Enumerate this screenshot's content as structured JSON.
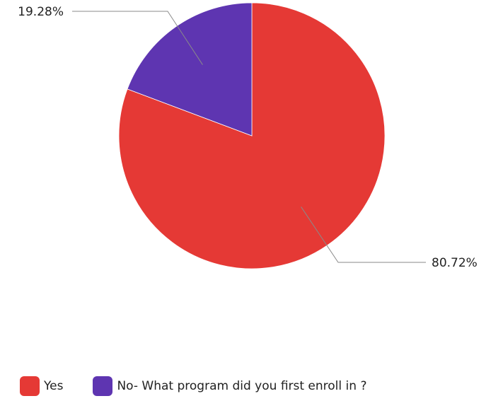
{
  "chart_data": {
    "type": "pie",
    "title": "",
    "series": [
      {
        "values": [
          80.72,
          19.28
        ]
      }
    ],
    "categories": [
      "Yes",
      "No- What program did you first enroll in ?"
    ],
    "data_labels": [
      "80.72%",
      "19.28%"
    ],
    "colors": [
      "#e53935",
      "#5e35b1"
    ],
    "legend_position": "bottom-left",
    "start_angle": "top, clockwise"
  }
}
